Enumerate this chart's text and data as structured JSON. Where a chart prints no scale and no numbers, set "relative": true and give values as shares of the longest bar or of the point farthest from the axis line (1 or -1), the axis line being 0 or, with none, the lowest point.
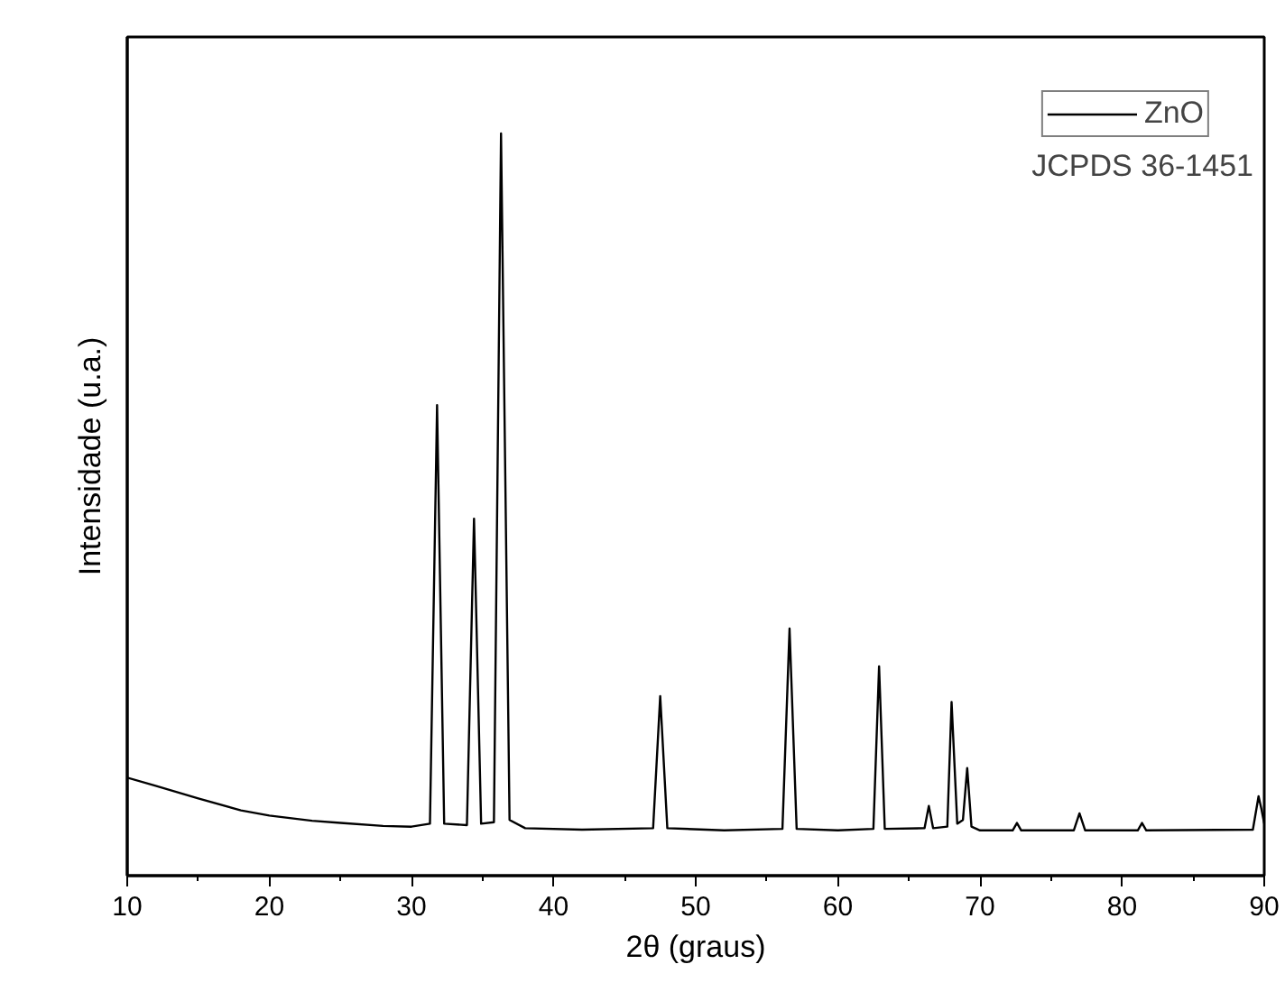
{
  "chart_data": {
    "type": "line",
    "relative": true,
    "xlabel": "2θ (graus)",
    "ylabel": "Intensidade (u.a.)",
    "xlim": [
      10,
      90
    ],
    "xticks": [
      10,
      20,
      30,
      40,
      50,
      60,
      70,
      80,
      90
    ],
    "tick_labels": "x",
    "grid": false,
    "legend": "top right",
    "marker": "none",
    "line_style": "solid",
    "annotations": [
      "JCPDS 36-1451"
    ],
    "series": [
      {
        "name": "ZnO",
        "color": "#000000",
        "x": [
          10,
          12,
          15,
          18,
          20,
          23,
          25,
          28,
          30,
          31.3,
          31.8,
          32.3,
          33.9,
          34.4,
          34.9,
          35.8,
          36.3,
          36.9,
          38,
          42,
          47.0,
          47.5,
          48.0,
          52,
          56.1,
          56.6,
          57.1,
          60,
          62.5,
          62.9,
          63.3,
          66.1,
          66.4,
          66.7,
          67.7,
          68.0,
          68.4,
          68.8,
          69.1,
          69.4,
          70,
          72.3,
          72.6,
          72.9,
          76.6,
          77.0,
          77.4,
          81.1,
          81.4,
          81.7,
          89.2,
          89.6,
          89.8,
          90
        ],
        "values": [
          0.132,
          0.121,
          0.104,
          0.088,
          0.081,
          0.074,
          0.071,
          0.067,
          0.066,
          0.07,
          0.634,
          0.07,
          0.068,
          0.481,
          0.07,
          0.072,
          1,
          0.075,
          0.064,
          0.062,
          0.064,
          0.242,
          0.064,
          0.061,
          0.063,
          0.333,
          0.063,
          0.061,
          0.063,
          0.282,
          0.063,
          0.064,
          0.094,
          0.064,
          0.066,
          0.234,
          0.07,
          0.075,
          0.145,
          0.066,
          0.061,
          0.061,
          0.071,
          0.061,
          0.061,
          0.084,
          0.061,
          0.061,
          0.071,
          0.061,
          0.062,
          0.107,
          0.09,
          0.07
        ]
      }
    ]
  }
}
